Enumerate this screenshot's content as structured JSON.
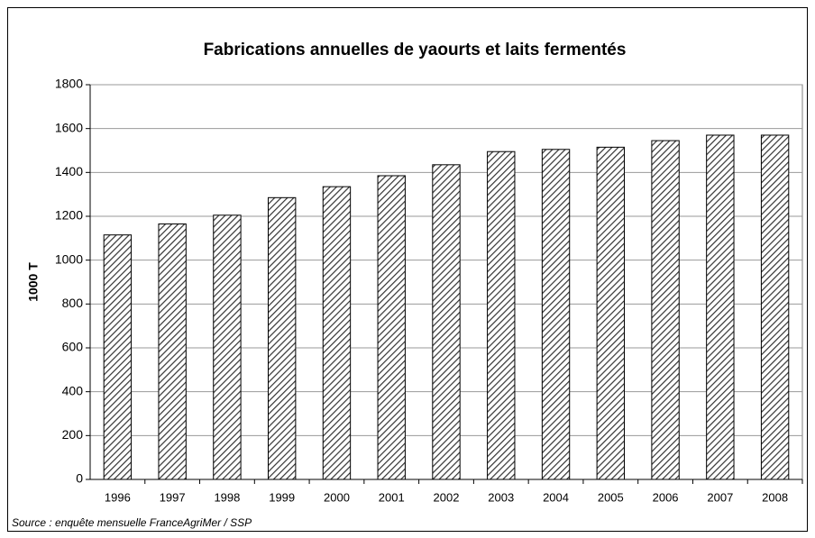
{
  "chart_data": {
    "type": "bar",
    "title": "Fabrications annuelles de yaourts et laits fermentés",
    "y_label": "1000 T",
    "source": "Source : enquête mensuelle FranceAgriMer / SSP",
    "categories": [
      "1996",
      "1997",
      "1998",
      "1999",
      "2000",
      "2001",
      "2002",
      "2003",
      "2004",
      "2005",
      "2006",
      "2007",
      "2008"
    ],
    "values": [
      1115,
      1165,
      1205,
      1285,
      1335,
      1385,
      1435,
      1495,
      1505,
      1515,
      1545,
      1570,
      1570
    ],
    "color": "#000000",
    "ylim": [
      0,
      1800
    ],
    "yticks": [
      0,
      200,
      400,
      600,
      800,
      1000,
      1200,
      1400,
      1600,
      1800
    ],
    "grid": true
  }
}
